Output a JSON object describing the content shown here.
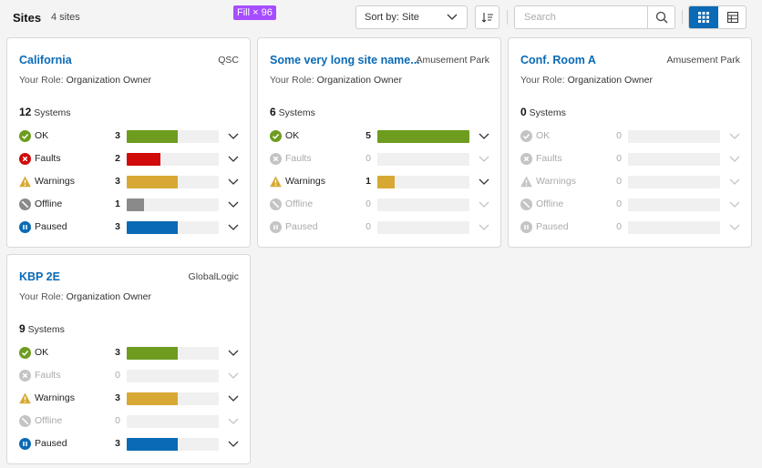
{
  "header": {
    "title": "Sites",
    "count_label": "4 sites",
    "fill_badge": "Fill × 96",
    "sort_label": "Sort by: Site",
    "search_placeholder": "Search"
  },
  "colors": {
    "accent": "#0a6ab5",
    "ok": "#6d9c1f",
    "faults": "#d10a0a",
    "warnings": "#d7a934",
    "offline": "#8a8a8a",
    "paused": "#0a6ab5",
    "muted": "#c4c4c4"
  },
  "status_names": {
    "ok": "OK",
    "faults": "Faults",
    "warnings": "Warnings",
    "offline": "Offline",
    "paused": "Paused"
  },
  "icons": {
    "ok": "check-circle-icon",
    "faults": "x-circle-icon",
    "warnings": "warning-triangle-icon",
    "offline": "offline-circle-icon",
    "paused": "pause-circle-icon",
    "expand": "chevron-down-icon"
  },
  "bar_scale": 5,
  "sites": [
    {
      "name": "California",
      "owner": "QSC",
      "role_label": "Your Role:",
      "role": "Organization Owner",
      "systems": "12",
      "systems_label": "Systems",
      "statuses": [
        {
          "key": "ok",
          "count": 3
        },
        {
          "key": "faults",
          "count": 2
        },
        {
          "key": "warnings",
          "count": 3
        },
        {
          "key": "offline",
          "count": 1
        },
        {
          "key": "paused",
          "count": 3
        }
      ]
    },
    {
      "name": "Some very long site name...",
      "owner": "Amusement Park",
      "role_label": "Your Role:",
      "role": "Organization Owner",
      "systems": "6",
      "systems_label": "Systems",
      "statuses": [
        {
          "key": "ok",
          "count": 5
        },
        {
          "key": "faults",
          "count": 0
        },
        {
          "key": "warnings",
          "count": 1
        },
        {
          "key": "offline",
          "count": 0
        },
        {
          "key": "paused",
          "count": 0
        }
      ]
    },
    {
      "name": "Conf. Room A",
      "owner": "Amusement Park",
      "role_label": "Your Role:",
      "role": "Organization Owner",
      "systems": "0",
      "systems_label": "Systems",
      "statuses": [
        {
          "key": "ok",
          "count": 0
        },
        {
          "key": "faults",
          "count": 0
        },
        {
          "key": "warnings",
          "count": 0
        },
        {
          "key": "offline",
          "count": 0
        },
        {
          "key": "paused",
          "count": 0
        }
      ]
    },
    {
      "name": "KBP 2E",
      "owner": "GlobalLogic",
      "role_label": "Your Role:",
      "role": "Organization Owner",
      "systems": "9",
      "systems_label": "Systems",
      "statuses": [
        {
          "key": "ok",
          "count": 3
        },
        {
          "key": "faults",
          "count": 0
        },
        {
          "key": "warnings",
          "count": 3
        },
        {
          "key": "offline",
          "count": 0
        },
        {
          "key": "paused",
          "count": 3
        }
      ]
    }
  ]
}
